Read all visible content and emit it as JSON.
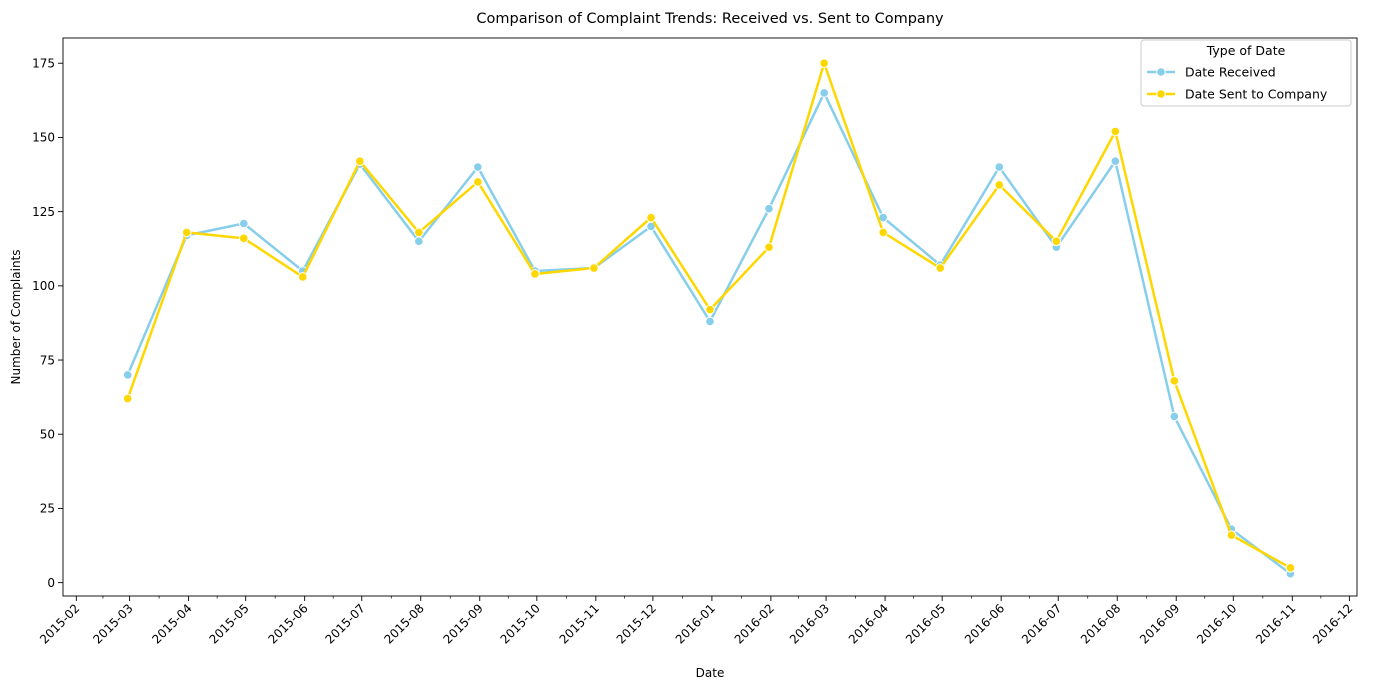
{
  "chart_data": {
    "type": "line",
    "title": "Comparison of Complaint Trends: Received vs. Sent to Company",
    "xlabel": "Date",
    "ylabel": "Number of Complaints",
    "x_tick_labels": [
      "2015-02",
      "2015-03",
      "2015-04",
      "2015-05",
      "2015-06",
      "2015-07",
      "2015-08",
      "2015-09",
      "2015-10",
      "2015-11",
      "2015-12",
      "2016-01",
      "2016-02",
      "2016-03",
      "2016-04",
      "2016-05",
      "2016-06",
      "2016-07",
      "2016-08",
      "2016-09",
      "2016-10",
      "2016-11",
      "2016-12"
    ],
    "x": [
      "2015-02-28",
      "2015-03-31",
      "2015-04-30",
      "2015-05-31",
      "2015-06-30",
      "2015-07-31",
      "2015-08-31",
      "2015-09-30",
      "2015-10-31",
      "2015-11-30",
      "2015-12-31",
      "2016-01-31",
      "2016-02-29",
      "2016-03-31",
      "2016-04-30",
      "2016-05-31",
      "2016-06-30",
      "2016-07-31",
      "2016-08-31",
      "2016-09-30",
      "2016-10-31"
    ],
    "y_ticks": [
      0,
      25,
      50,
      75,
      100,
      125,
      150,
      175
    ],
    "ylim": [
      -4.5,
      183.5
    ],
    "xlim": [
      "2015-01-25",
      "2016-12-05"
    ],
    "grid": false,
    "legend": {
      "title": "Type of Date",
      "placement": "top-right"
    },
    "series": [
      {
        "name": "Date Received",
        "color": "#87ceeb",
        "values": [
          70,
          117,
          121,
          105,
          141,
          115,
          140,
          105,
          106,
          120,
          88,
          126,
          165,
          123,
          107,
          140,
          113,
          142,
          56,
          18,
          3
        ]
      },
      {
        "name": "Date Sent to Company",
        "color": "#ffd700",
        "values": [
          62,
          118,
          116,
          103,
          142,
          118,
          135,
          104,
          106,
          123,
          92,
          113,
          175,
          118,
          106,
          134,
          115,
          152,
          68,
          16,
          5
        ]
      }
    ]
  }
}
